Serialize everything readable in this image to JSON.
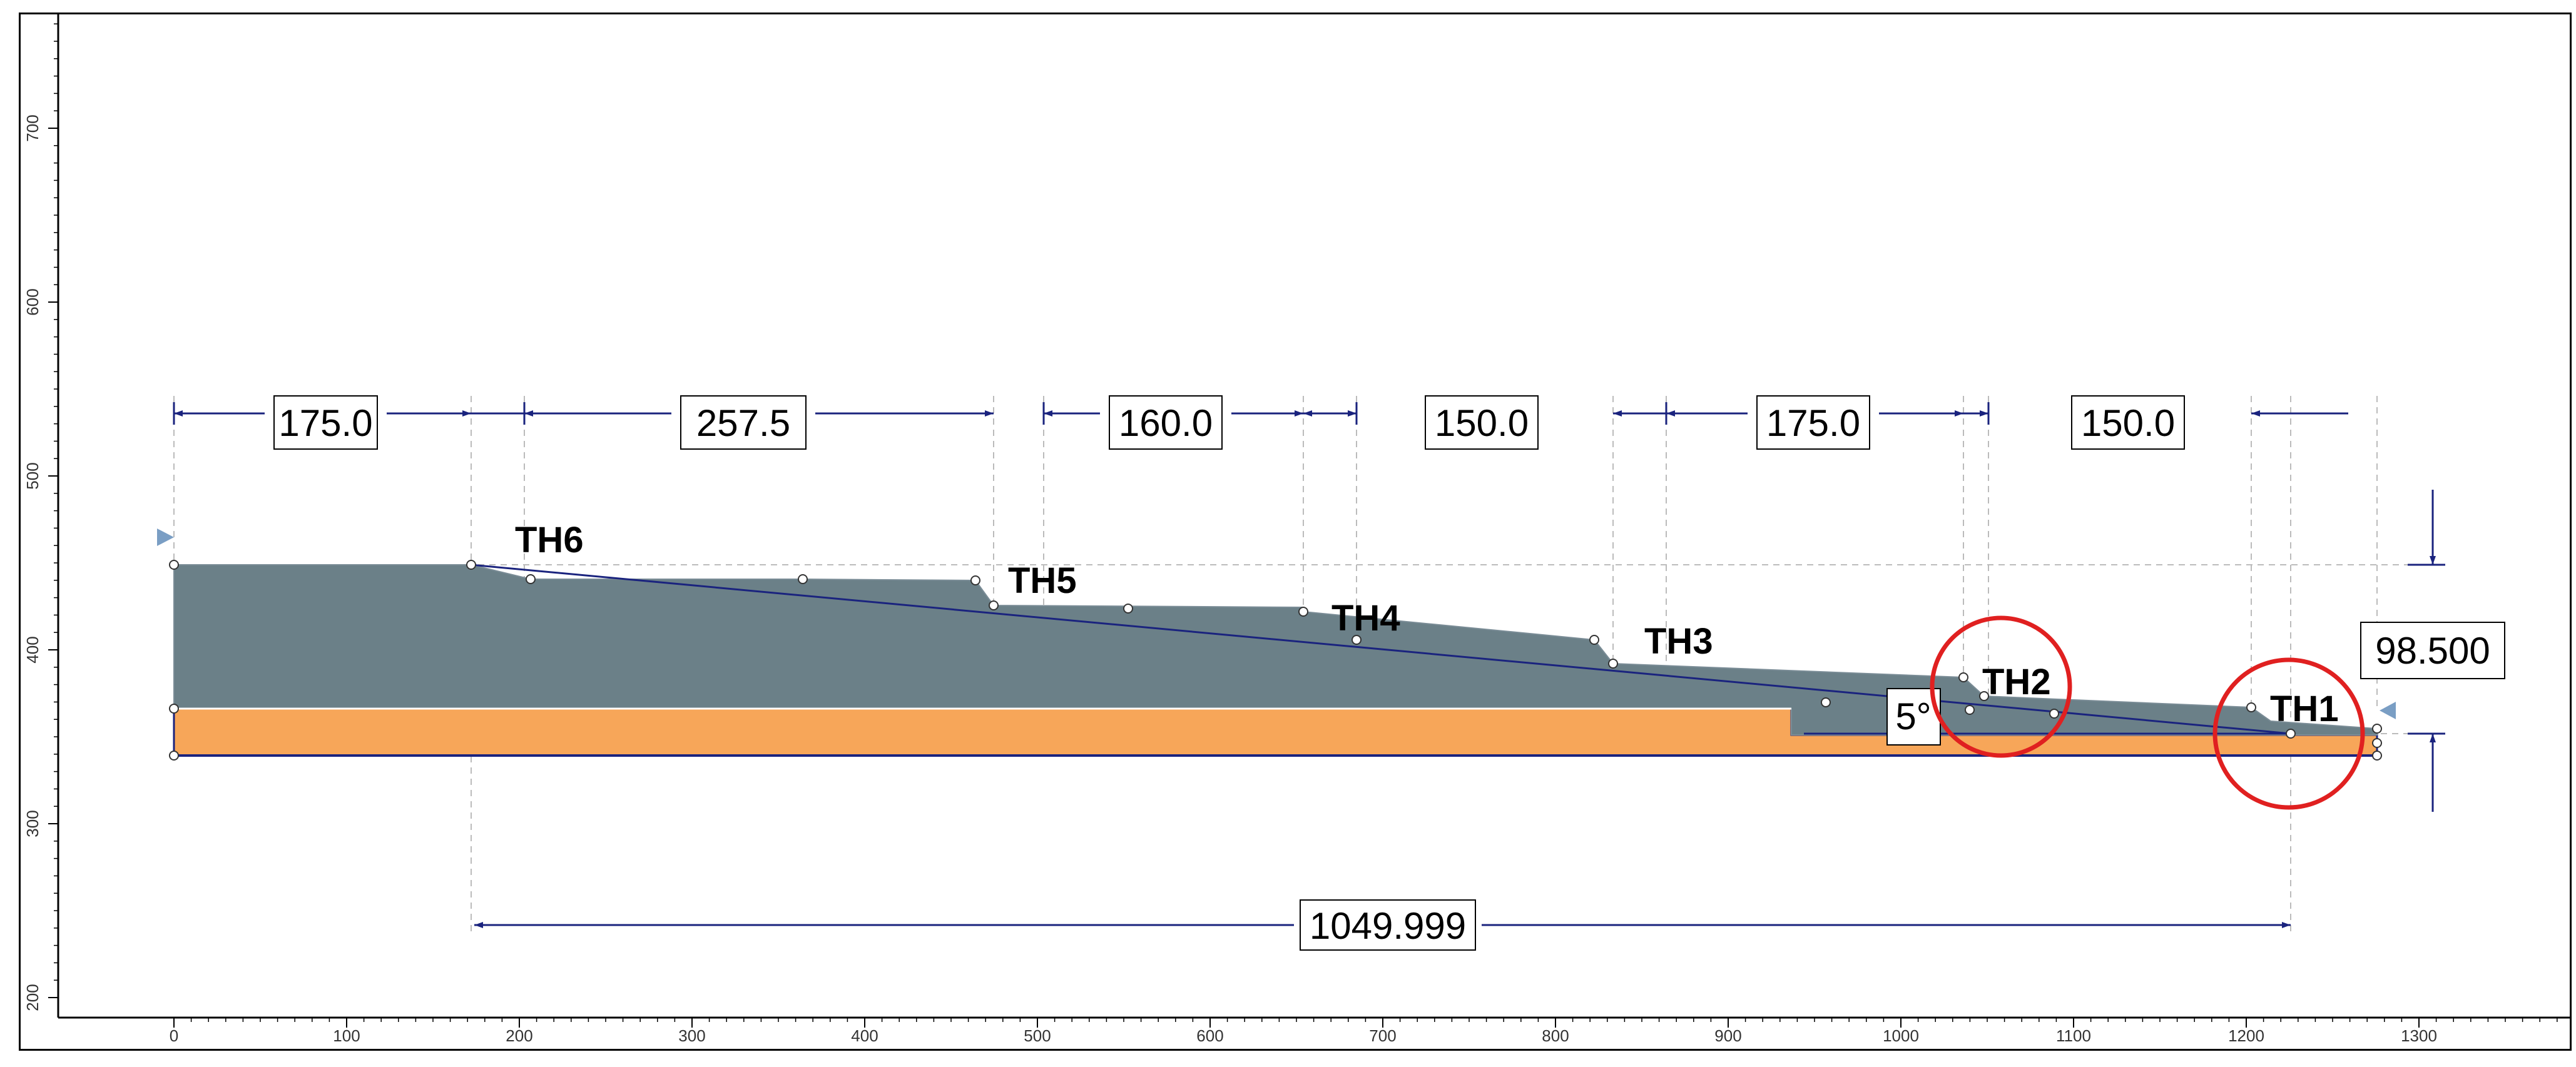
{
  "model": {
    "colors": {
      "rock_layer": "#6b8088",
      "soil_layer": "#f7a659",
      "dimension": "#1a237e",
      "guide": "#bbbbbb",
      "highlight_circle": "#e02020",
      "vertex_fill": "#ffffff",
      "water_marker": "#7a9ec4",
      "line": "#1a237e"
    },
    "axes": {
      "x_ticks": [
        "0",
        "100",
        "200",
        "300",
        "400",
        "500",
        "600",
        "700",
        "800",
        "900",
        "1000",
        "1100",
        "1200",
        "1300"
      ],
      "y_ticks": [
        "200",
        "300",
        "400",
        "500",
        "600",
        "700"
      ]
    },
    "top_dimensions": [
      {
        "text": "175.0"
      },
      {
        "text": "257.5"
      },
      {
        "text": "160.0"
      },
      {
        "text": "150.0"
      },
      {
        "text": "175.0"
      },
      {
        "text": "150.0"
      }
    ],
    "bottom_dimension": {
      "text": "1049.999"
    },
    "height_dimension": {
      "text": "98.500"
    },
    "angle_label": {
      "text": "5°"
    },
    "terraces": [
      {
        "label": "TH6"
      },
      {
        "label": "TH5"
      },
      {
        "label": "TH4"
      },
      {
        "label": "TH3"
      },
      {
        "label": "TH2"
      },
      {
        "label": "TH1"
      }
    ],
    "highlighted": [
      "TH2",
      "TH1"
    ]
  }
}
